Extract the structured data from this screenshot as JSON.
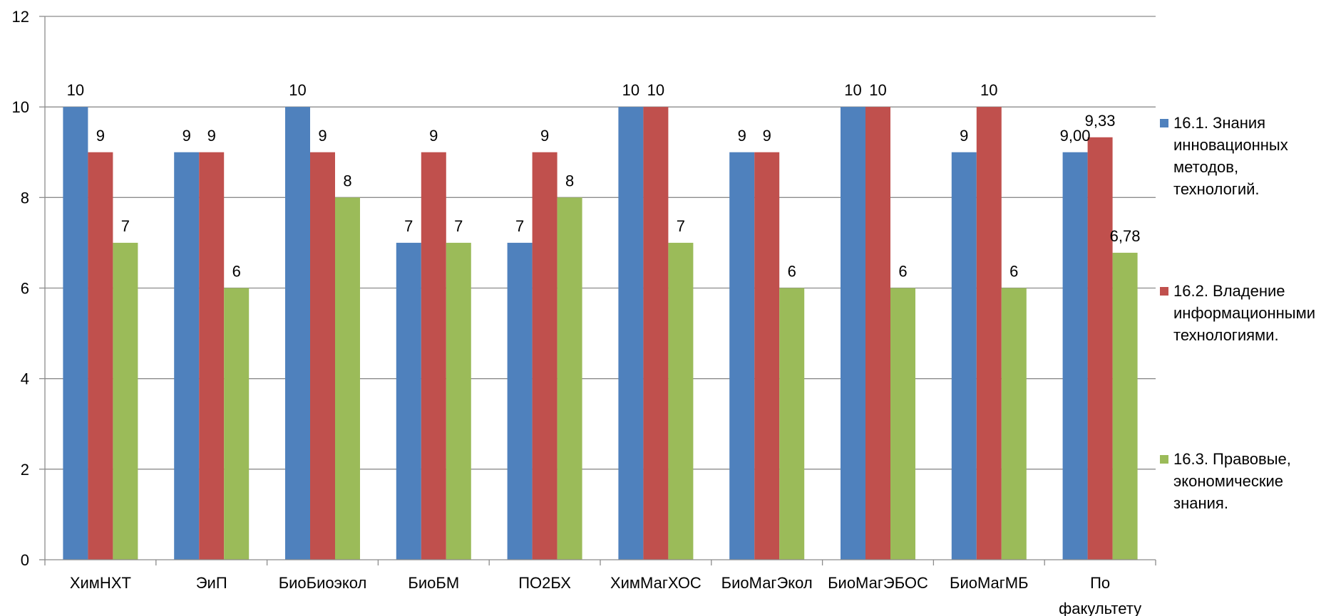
{
  "chart_data": {
    "type": "bar",
    "title": "",
    "xlabel": "",
    "ylabel": "",
    "ylim": [
      0,
      12
    ],
    "yticks": [
      0,
      2,
      4,
      6,
      8,
      10,
      12
    ],
    "grid": true,
    "legend_position": "right",
    "categories": [
      "ХимНХТ",
      "ЭиП",
      "БиоБиоэкол",
      "БиоБМ",
      "ПО2БХ",
      "ХимМагХОС",
      "БиоМагЭкол",
      "БиоМагЭБОС",
      "БиоМагМБ",
      "По факультету"
    ],
    "category_lines": [
      [
        "ХимНХТ"
      ],
      [
        "ЭиП"
      ],
      [
        "БиоБиоэкол"
      ],
      [
        "БиоБМ"
      ],
      [
        "ПО2БХ"
      ],
      [
        "ХимМагХОС"
      ],
      [
        "БиоМагЭкол"
      ],
      [
        "БиоМагЭБОС"
      ],
      [
        "БиоМагМБ"
      ],
      [
        "По",
        "факультету"
      ]
    ],
    "series": [
      {
        "name": "16.1. Знания инновационных методов, технологий.",
        "name_lines": [
          "16.1. Знания",
          "инновационных",
          "методов,",
          "технологий."
        ],
        "color": "#4F81BD",
        "values": [
          10,
          9,
          10,
          7,
          7,
          10,
          9,
          10,
          9,
          9.0
        ],
        "labels": [
          "10",
          "9",
          "10",
          "7",
          "7",
          "10",
          "9",
          "10",
          "9",
          "9,00"
        ]
      },
      {
        "name": "16.2. Владение информационными технологиями.",
        "name_lines": [
          "16.2. Владение",
          "информационными",
          "технологиями."
        ],
        "color": "#C0504D",
        "values": [
          9,
          9,
          9,
          9,
          9,
          10,
          9,
          10,
          10,
          9.33
        ],
        "labels": [
          "9",
          "9",
          "9",
          "9",
          "9",
          "10",
          "9",
          "10",
          "10",
          "9,33"
        ]
      },
      {
        "name": "16.3. Правовые, экономические знания.",
        "name_lines": [
          "16.3. Правовые,",
          "экономические",
          "знания."
        ],
        "color": "#9BBB59",
        "values": [
          7,
          6,
          8,
          7,
          8,
          7,
          6,
          6,
          6,
          6.78
        ],
        "labels": [
          "7",
          "6",
          "8",
          "7",
          "8",
          "7",
          "6",
          "6",
          "6",
          "6,78"
        ]
      }
    ]
  }
}
